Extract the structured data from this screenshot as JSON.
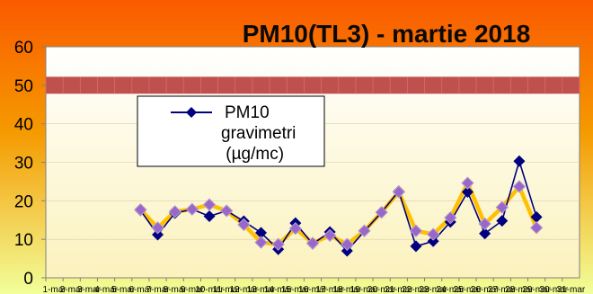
{
  "chart_data": {
    "type": "line",
    "title": "PM10(TL3) - martie 2018",
    "ylim": [
      0,
      60
    ],
    "yticks": [
      0,
      10,
      20,
      30,
      40,
      50,
      60
    ],
    "x": [
      "1-mar",
      "2-mar",
      "3-mar",
      "4-mar",
      "5-mar",
      "6-mar",
      "7-mar",
      "8-mar",
      "9-mar",
      "10-mar",
      "11-mar",
      "12-mar",
      "13-mar",
      "14-mar",
      "15-mar",
      "16-mar",
      "17-mar",
      "18-mar",
      "19-mar",
      "20-mar",
      "21-mar",
      "22-mar",
      "23-mar",
      "24-mar",
      "25-mar",
      "26-mar",
      "27-mar",
      "28-mar",
      "29-mar",
      "30-mar",
      "31-mar"
    ],
    "limit_value": 50,
    "legend_position": "top-left",
    "series": [
      {
        "name": "PM10 gravimetric (µg/mc)",
        "color": "#000080",
        "values": [
          null,
          null,
          null,
          null,
          null,
          17.5,
          11.2,
          16.8,
          17.8,
          16,
          17.4,
          14.7,
          11.7,
          7.4,
          14.2,
          8.8,
          11.9,
          7,
          12.1,
          17,
          22.5,
          8.2,
          9.5,
          14.5,
          22.3,
          11.5,
          14.8,
          30.3,
          15.8,
          null,
          null
        ]
      },
      {
        "color": "#ffc000",
        "values": [
          null,
          null,
          null,
          null,
          null,
          17.7,
          13,
          17.2,
          17.8,
          19,
          17.4,
          13.8,
          9.2,
          8.7,
          12.8,
          9,
          11,
          8.7,
          12.2,
          17,
          22.3,
          12.2,
          11.3,
          15.6,
          24.6,
          14,
          18.3,
          23.7,
          13,
          null,
          null
        ]
      }
    ]
  }
}
